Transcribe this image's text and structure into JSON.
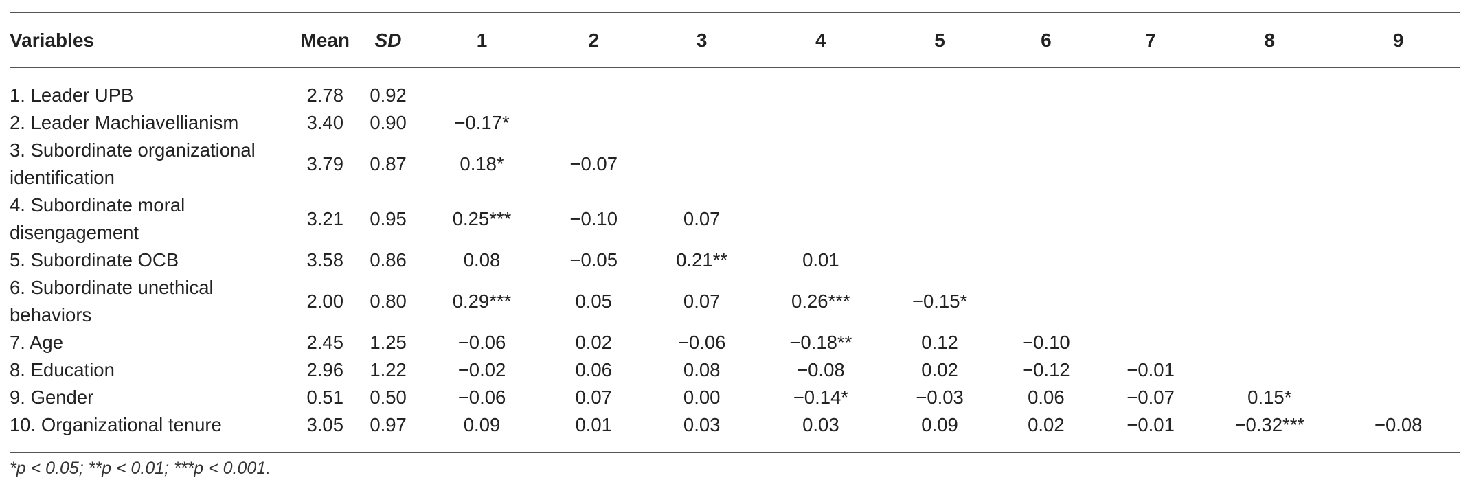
{
  "headers": [
    "Variables",
    "Mean",
    "SD",
    "1",
    "2",
    "3",
    "4",
    "5",
    "6",
    "7",
    "8",
    "9"
  ],
  "rows": [
    {
      "label": [
        "1. Leader UPB"
      ],
      "cells": [
        "2.78",
        "0.92",
        "",
        "",
        "",
        "",
        "",
        "",
        "",
        "",
        ""
      ]
    },
    {
      "label": [
        "2. Leader Machiavellianism"
      ],
      "cells": [
        "3.40",
        "0.90",
        "−0.17*",
        "",
        "",
        "",
        "",
        "",
        "",
        "",
        ""
      ]
    },
    {
      "label": [
        "3. Subordinate organizational",
        "identification"
      ],
      "cells": [
        "3.79",
        "0.87",
        "0.18*",
        "−0.07",
        "",
        "",
        "",
        "",
        "",
        "",
        ""
      ]
    },
    {
      "label": [
        "4. Subordinate moral",
        "disengagement"
      ],
      "cells": [
        "3.21",
        "0.95",
        "0.25***",
        "−0.10",
        "0.07",
        "",
        "",
        "",
        "",
        "",
        ""
      ]
    },
    {
      "label": [
        "5. Subordinate OCB"
      ],
      "cells": [
        "3.58",
        "0.86",
        "0.08",
        "−0.05",
        "0.21**",
        "0.01",
        "",
        "",
        "",
        "",
        ""
      ]
    },
    {
      "label": [
        "6. Subordinate unethical",
        "behaviors"
      ],
      "cells": [
        "2.00",
        "0.80",
        "0.29***",
        "0.05",
        "0.07",
        "0.26***",
        "−0.15*",
        "",
        "",
        "",
        ""
      ]
    },
    {
      "label": [
        "7. Age"
      ],
      "cells": [
        "2.45",
        "1.25",
        "−0.06",
        "0.02",
        "−0.06",
        "−0.18**",
        "0.12",
        "−0.10",
        "",
        "",
        ""
      ]
    },
    {
      "label": [
        "8. Education"
      ],
      "cells": [
        "2.96",
        "1.22",
        "−0.02",
        "0.06",
        "0.08",
        "−0.08",
        "0.02",
        "−0.12",
        "−0.01",
        "",
        ""
      ]
    },
    {
      "label": [
        "9. Gender"
      ],
      "cells": [
        "0.51",
        "0.50",
        "−0.06",
        "0.07",
        "0.00",
        "−0.14*",
        "−0.03",
        "0.06",
        "−0.07",
        "0.15*",
        ""
      ]
    },
    {
      "label": [
        "10. Organizational tenure"
      ],
      "cells": [
        "3.05",
        "0.97",
        "0.09",
        "0.01",
        "0.03",
        "0.03",
        "0.09",
        "0.02",
        "−0.01",
        "−0.32***",
        "−0.08"
      ]
    }
  ],
  "footnote": "*p < 0.05; **p < 0.01; ***p < 0.001."
}
